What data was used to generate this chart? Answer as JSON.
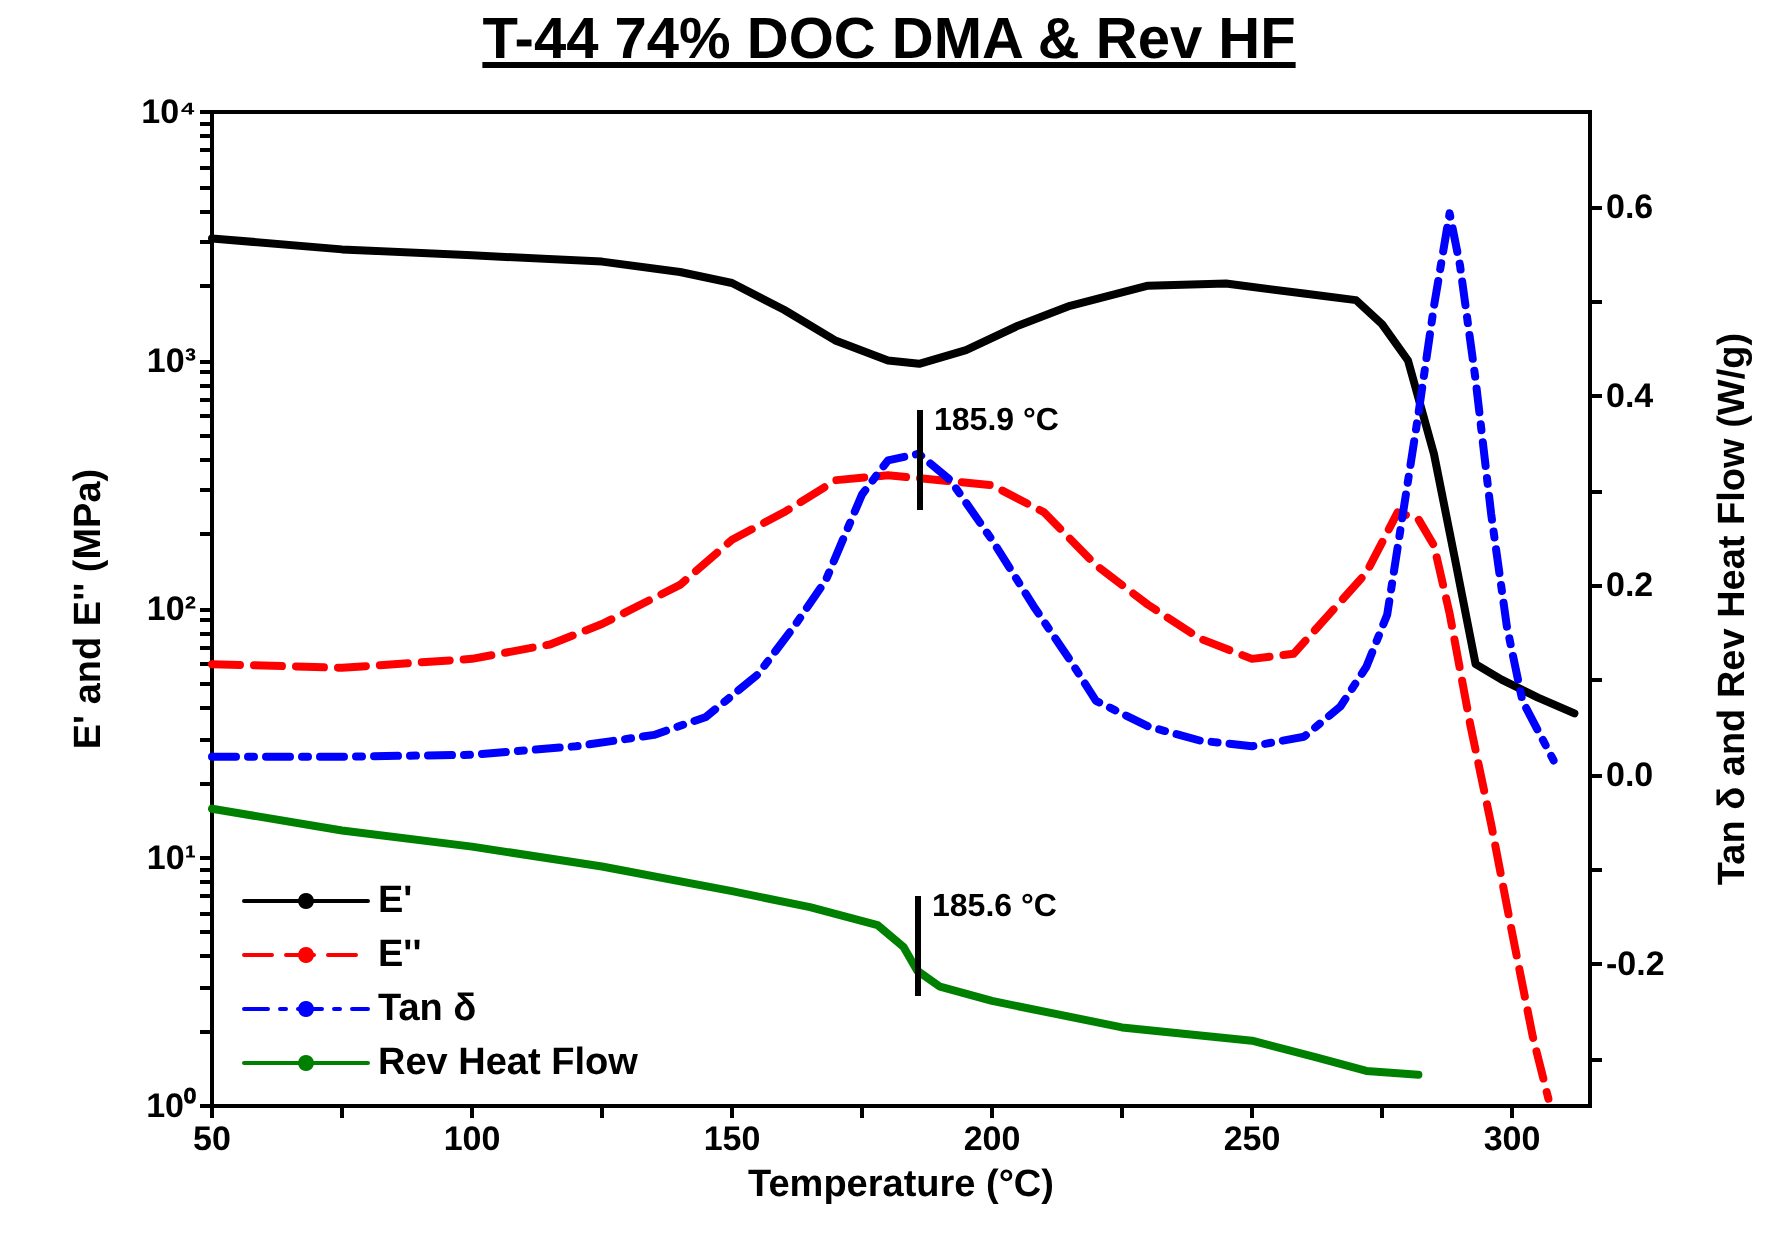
{
  "chart_data": {
    "type": "line",
    "title": "T-44 74% DOC DMA & Rev HF",
    "xlabel": "Temperature (°C)",
    "ylabel": "E' and E'' (MPa)",
    "y2label": "Tan δ and Rev Heat Flow (W/g)",
    "xlim": [
      50,
      315
    ],
    "xticks": [
      50,
      {
        "value": 75,
        "label": null
      },
      100,
      {
        "value": 125,
        "label": null
      },
      150,
      {
        "value": 175,
        "label": null
      },
      200,
      {
        "value": 225,
        "label": null
      },
      250,
      {
        "value": 275,
        "label": null
      },
      300
    ],
    "ylim": [
      1,
      10000
    ],
    "yticks": [
      {
        "value": 1,
        "label": "10⁰"
      },
      {
        "value": 2,
        "label": null
      },
      {
        "value": 3,
        "label": null
      },
      {
        "value": 4,
        "label": null
      },
      {
        "value": 5,
        "label": null
      },
      {
        "value": 6,
        "label": null
      },
      {
        "value": 7,
        "label": null
      },
      {
        "value": 8,
        "label": null
      },
      {
        "value": 9,
        "label": null
      },
      {
        "value": 10,
        "label": "10¹"
      },
      {
        "value": 20,
        "label": null
      },
      {
        "value": 30,
        "label": null
      },
      {
        "value": 40,
        "label": null
      },
      {
        "value": 50,
        "label": null
      },
      {
        "value": 60,
        "label": null
      },
      {
        "value": 70,
        "label": null
      },
      {
        "value": 80,
        "label": null
      },
      {
        "value": 90,
        "label": null
      },
      {
        "value": 100,
        "label": "10²"
      },
      {
        "value": 200,
        "label": null
      },
      {
        "value": 300,
        "label": null
      },
      {
        "value": 400,
        "label": null
      },
      {
        "value": 500,
        "label": null
      },
      {
        "value": 600,
        "label": null
      },
      {
        "value": 700,
        "label": null
      },
      {
        "value": 800,
        "label": null
      },
      {
        "value": 900,
        "label": null
      },
      {
        "value": 1000,
        "label": "10³"
      },
      {
        "value": 2000,
        "label": null
      },
      {
        "value": 3000,
        "label": null
      },
      {
        "value": 4000,
        "label": null
      },
      {
        "value": 5000,
        "label": null
      },
      {
        "value": 6000,
        "label": null
      },
      {
        "value": 7000,
        "label": null
      },
      {
        "value": 8000,
        "label": null
      },
      {
        "value": 9000,
        "label": null
      },
      {
        "value": 10000,
        "label": "10⁴"
      }
    ],
    "y2lim": [
      -0.35,
      0.7
    ],
    "y2ticks": [
      {
        "value": -0.3,
        "label": null
      },
      {
        "value": -0.2,
        "label": "-0.2"
      },
      {
        "value": -0.1,
        "label": null
      },
      {
        "value": 0,
        "label": "0.0"
      },
      {
        "value": 0.1,
        "label": null
      },
      {
        "value": 0.2,
        "label": "0.2"
      },
      {
        "value": 0.3,
        "label": null
      },
      {
        "value": 0.4,
        "label": "0.4"
      },
      {
        "value": 0.5,
        "label": null
      },
      {
        "value": 0.6,
        "label": "0.6"
      }
    ],
    "annotations": [
      "185.9 °C",
      "185.6 °C"
    ],
    "log": "y",
    "grid": false,
    "legend": "bottom left",
    "marker": "none",
    "series": [
      {
        "name": "E'",
        "color": "#000000",
        "line_style": "solid",
        "x": [
          50,
          75,
          100,
          125,
          140,
          150,
          160,
          170,
          180,
          186,
          195,
          205,
          215,
          230,
          245,
          260,
          270,
          275,
          280,
          285,
          289,
          293,
          298,
          305,
          312
        ],
        "values": [
          3100,
          2800,
          2650,
          2500,
          2270,
          2050,
          1600,
          1200,
          1000,
          970,
          1100,
          1380,
          1660,
          2000,
          2040,
          1860,
          1750,
          1400,
          1000,
          420,
          160,
          60,
          52,
          44,
          38
        ]
      },
      {
        "name": "E''",
        "color": "#ff0000",
        "line_style": "dashed",
        "x": [
          50,
          75,
          100,
          115,
          125,
          140,
          150,
          160,
          170,
          180,
          190,
          200,
          210,
          220,
          230,
          240,
          250,
          258,
          265,
          272,
          278,
          282,
          285,
          288,
          292,
          296,
          300,
          304,
          307
        ],
        "values": [
          60,
          58,
          63,
          72,
          87,
          125,
          190,
          245,
          330,
          345,
          330,
          315,
          245,
          150,
          104,
          76,
          63,
          66,
          96,
          140,
          245,
          230,
          180,
          96,
          34,
          13.6,
          5,
          1.9,
          1.07
        ]
      },
      {
        "name": "Tan δ",
        "color": "#0000ff",
        "line_style": "dashdot",
        "axis": "y2",
        "x": [
          50,
          75,
          100,
          120,
          135,
          145,
          155,
          162,
          168,
          175,
          180,
          185.9,
          192,
          200,
          208,
          215,
          220,
          230,
          240,
          250,
          260,
          267,
          272,
          276,
          279,
          282,
          285,
          288,
          290,
          293,
          296,
          299,
          302,
          308
        ],
        "values": [
          0.019,
          0.019,
          0.021,
          0.03,
          0.042,
          0.061,
          0.106,
          0.157,
          0.205,
          0.296,
          0.332,
          0.339,
          0.311,
          0.248,
          0.178,
          0.121,
          0.078,
          0.051,
          0.036,
          0.03,
          0.04,
          0.072,
          0.114,
          0.169,
          0.275,
          0.381,
          0.495,
          0.593,
          0.538,
          0.417,
          0.275,
          0.157,
          0.078,
          0.015
        ]
      },
      {
        "name": "Rev Heat Flow",
        "color": "#008000",
        "line_style": "solid",
        "axis": "y2",
        "x": [
          50,
          75,
          100,
          125,
          150,
          165,
          178,
          183,
          185.6,
          190,
          200,
          225,
          250,
          262,
          272,
          282
        ],
        "values": [
          -0.036,
          -0.059,
          -0.076,
          -0.097,
          -0.123,
          -0.14,
          -0.159,
          -0.182,
          -0.207,
          -0.224,
          -0.239,
          -0.267,
          -0.281,
          -0.298,
          -0.313,
          -0.317
        ]
      }
    ]
  }
}
